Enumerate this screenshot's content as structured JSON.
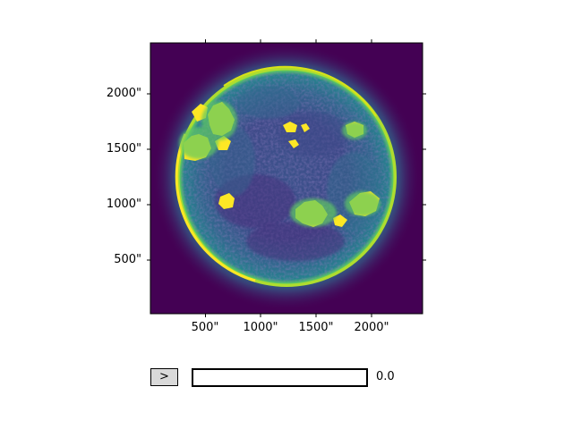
{
  "plot": {
    "x_ticks": [
      "500\"",
      "1000\"",
      "1500\"",
      "2000\""
    ],
    "y_ticks": [
      "2000\"",
      "1500\"",
      "1000\"",
      "500\""
    ],
    "colormap": [
      "#440154",
      "#3b528b",
      "#21918c",
      "#5ec962",
      "#fde725"
    ],
    "background_color": "#440154"
  },
  "controls": {
    "play_label": ">",
    "slider_value_text": "0.0",
    "slider_value": 0.0,
    "slider_fill_color": "#1f77b4"
  }
}
